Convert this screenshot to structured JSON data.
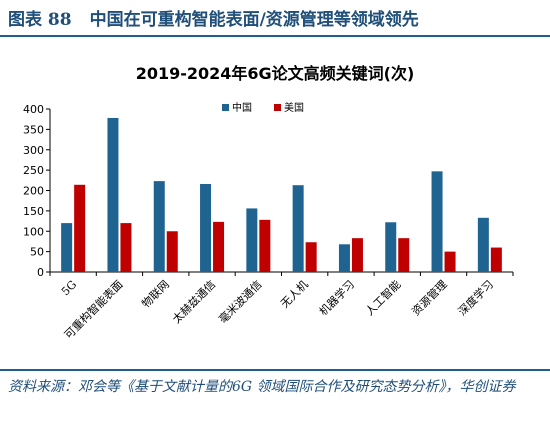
{
  "figure": {
    "label": "图表 88",
    "caption": "中国在可重构智能表面/资源管理等领域领先",
    "source": "资料来源：邓会等《基于文献计量的6G 领域国际合作及研究态势分析》，华创证券"
  },
  "chart_data": {
    "type": "bar",
    "title": "2019-2024年6G论文高频关键词(次)",
    "categories": [
      "5G",
      "可重构智能表面",
      "物联网",
      "太赫兹通信",
      "毫米波通信",
      "无人机",
      "机器学习",
      "人工智能",
      "资源管理",
      "深度学习"
    ],
    "series": [
      {
        "name": "中国",
        "color": "#1f6391",
        "values": [
          120,
          378,
          223,
          216,
          156,
          213,
          68,
          122,
          247,
          133
        ]
      },
      {
        "name": "美国",
        "color": "#c00000",
        "values": [
          214,
          120,
          100,
          123,
          128,
          73,
          83,
          83,
          50,
          60
        ]
      }
    ],
    "ylim": [
      0,
      400
    ],
    "yticks": [
      0,
      50,
      100,
      150,
      200,
      250,
      300,
      350,
      400
    ],
    "grid": false,
    "legend_position": "top-right"
  }
}
